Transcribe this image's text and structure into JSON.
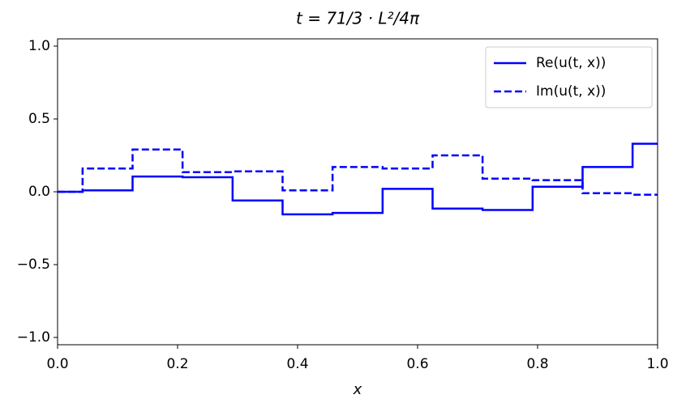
{
  "chart_data": {
    "type": "step",
    "drawstyle": "steps-post",
    "title": "t = 71/3 · L²/4π",
    "xlabel": "x",
    "x": [
      0,
      0.0417,
      0.125,
      0.2083,
      0.2917,
      0.375,
      0.4583,
      0.5417,
      0.625,
      0.7083,
      0.7917,
      0.875,
      0.9583
    ],
    "series": [
      {
        "name": "Re(u(t, x))",
        "color": "#0000ff",
        "dash": "solid",
        "values": [
          0,
          0.01,
          0.105,
          0.1,
          -0.06,
          -0.155,
          -0.145,
          0.02,
          -0.115,
          -0.125,
          0.035,
          0.17,
          0.33
        ]
      },
      {
        "name": "Im(u(t, x))",
        "color": "#0000ff",
        "dash": "dashed",
        "values": [
          0,
          0.16,
          0.29,
          0.135,
          0.14,
          0.01,
          0.17,
          0.16,
          0.25,
          0.09,
          0.08,
          -0.01,
          -0.02
        ]
      }
    ],
    "xlim": [
      0,
      1
    ],
    "ylim": [
      -1.05,
      1.05
    ],
    "xticks": [
      {
        "value": 0,
        "label": "0.0"
      },
      {
        "value": 0.2,
        "label": "0.2"
      },
      {
        "value": 0.4,
        "label": "0.4"
      },
      {
        "value": 0.6,
        "label": "0.6"
      },
      {
        "value": 0.8,
        "label": "0.8"
      },
      {
        "value": 1,
        "label": "1.0"
      }
    ],
    "yticks": [
      {
        "value": -1,
        "label": "−1.0"
      },
      {
        "value": -0.5,
        "label": "−0.5"
      },
      {
        "value": 0,
        "label": "0.0"
      },
      {
        "value": 0.5,
        "label": "0.5"
      },
      {
        "value": 1,
        "label": "1.0"
      }
    ],
    "legend": "upper right",
    "grid": false
  }
}
